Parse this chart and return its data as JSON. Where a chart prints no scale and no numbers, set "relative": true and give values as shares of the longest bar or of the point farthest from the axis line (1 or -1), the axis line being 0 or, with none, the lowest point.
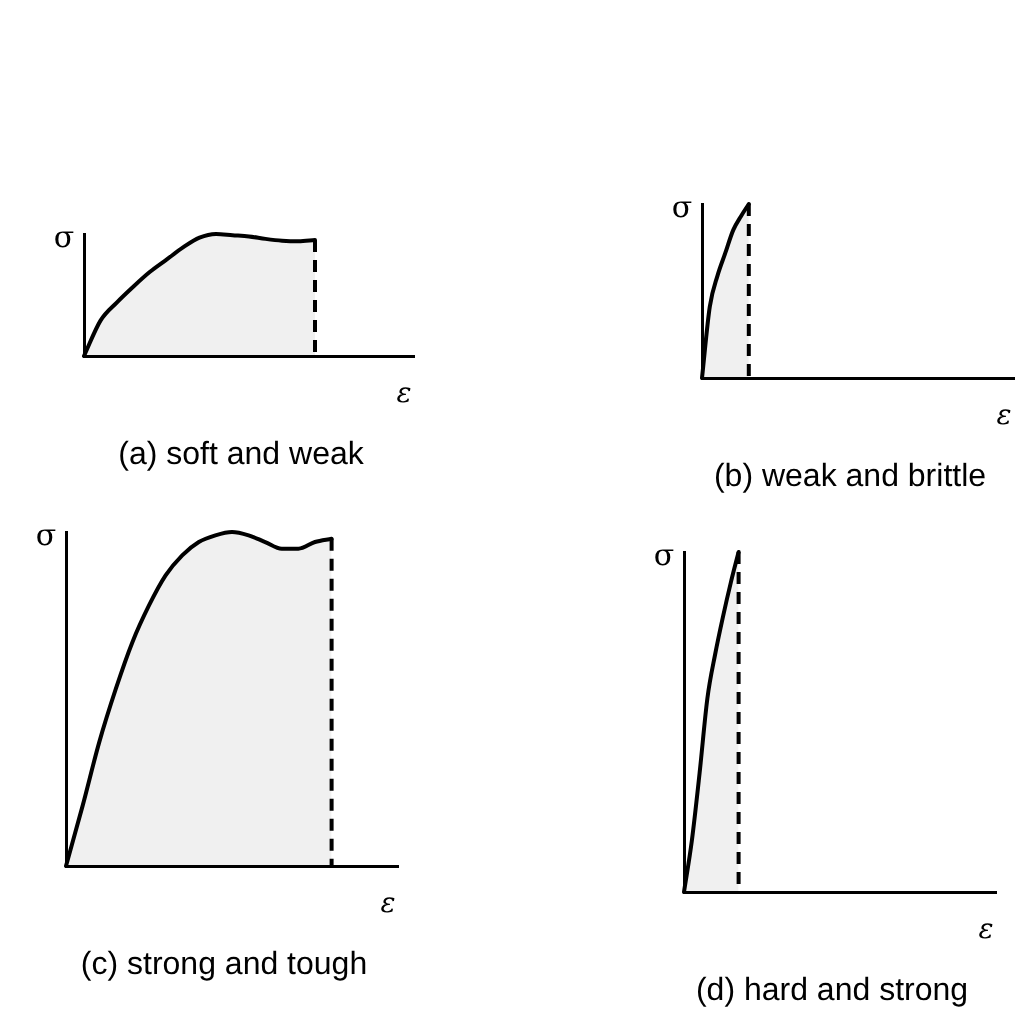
{
  "chart_data": [
    {
      "type": "area",
      "title": "(a) soft and weak",
      "xlabel": "ε",
      "ylabel": "σ",
      "relative": true,
      "tick_labels": false,
      "color": "#000000",
      "categories": [
        null,
        null,
        null,
        null,
        null,
        null,
        null,
        null,
        null,
        null,
        null,
        null,
        null,
        null,
        null,
        null,
        null,
        null,
        null,
        null,
        null
      ],
      "values": [
        0,
        0.29,
        0.44,
        0.57,
        0.69,
        0.79,
        0.89,
        0.97,
        1,
        0.99,
        0.98,
        0.96,
        0.945,
        0.94,
        0.95,
        null,
        null,
        null,
        null,
        null,
        null
      ]
    },
    {
      "type": "area",
      "title": "(b) weak and brittle",
      "xlabel": "ε",
      "ylabel": "σ",
      "relative": true,
      "tick_labels": false,
      "color": "#000000",
      "categories": [
        null,
        null,
        null,
        null,
        null,
        null,
        null,
        null,
        null,
        null,
        null,
        null,
        null,
        null,
        null,
        null,
        null,
        null,
        null,
        null,
        null,
        null,
        null,
        null,
        null,
        null,
        null,
        null,
        null,
        null,
        null,
        null,
        null,
        null,
        null,
        null,
        null,
        null,
        null,
        null,
        null
      ],
      "values": [
        0,
        0.41,
        0.59,
        0.72,
        0.85,
        0.93,
        1,
        null,
        null,
        null,
        null,
        null,
        null,
        null,
        null,
        null,
        null,
        null,
        null,
        null,
        null,
        null,
        null,
        null,
        null,
        null,
        null,
        null,
        null,
        null,
        null,
        null,
        null,
        null,
        null,
        null,
        null,
        null,
        null,
        null,
        null
      ]
    },
    {
      "type": "area",
      "title": "(c) strong and tough",
      "xlabel": "ε",
      "ylabel": "σ",
      "relative": true,
      "tick_labels": false,
      "color": "#000000",
      "categories": [
        null,
        null,
        null,
        null,
        null,
        null,
        null,
        null,
        null,
        null,
        null,
        null,
        null,
        null,
        null,
        null,
        null,
        null,
        null,
        null,
        null
      ],
      "values": [
        0,
        0.18,
        0.37,
        0.53,
        0.67,
        0.78,
        0.87,
        0.93,
        0.97,
        0.99,
        1,
        0.99,
        0.97,
        0.95,
        0.95,
        0.97,
        0.98,
        null,
        null,
        null,
        null
      ]
    },
    {
      "type": "area",
      "title": "(d) hard and strong",
      "xlabel": "ε",
      "ylabel": "σ",
      "relative": true,
      "tick_labels": false,
      "color": "#000000",
      "categories": [
        null,
        null,
        null,
        null,
        null,
        null,
        null,
        null,
        null,
        null,
        null,
        null,
        null,
        null,
        null,
        null,
        null,
        null,
        null,
        null,
        null,
        null,
        null,
        null,
        null,
        null,
        null,
        null,
        null,
        null,
        null,
        null,
        null,
        null,
        null,
        null,
        null,
        null,
        null,
        null,
        null
      ],
      "values": [
        0,
        0.15,
        0.35,
        0.57,
        0.7,
        0.81,
        0.91,
        1,
        null,
        null,
        null,
        null,
        null,
        null,
        null,
        null,
        null,
        null,
        null,
        null,
        null,
        null,
        null,
        null,
        null,
        null,
        null,
        null,
        null,
        null,
        null,
        null,
        null,
        null,
        null,
        null,
        null,
        null,
        null,
        null,
        null
      ]
    }
  ]
}
